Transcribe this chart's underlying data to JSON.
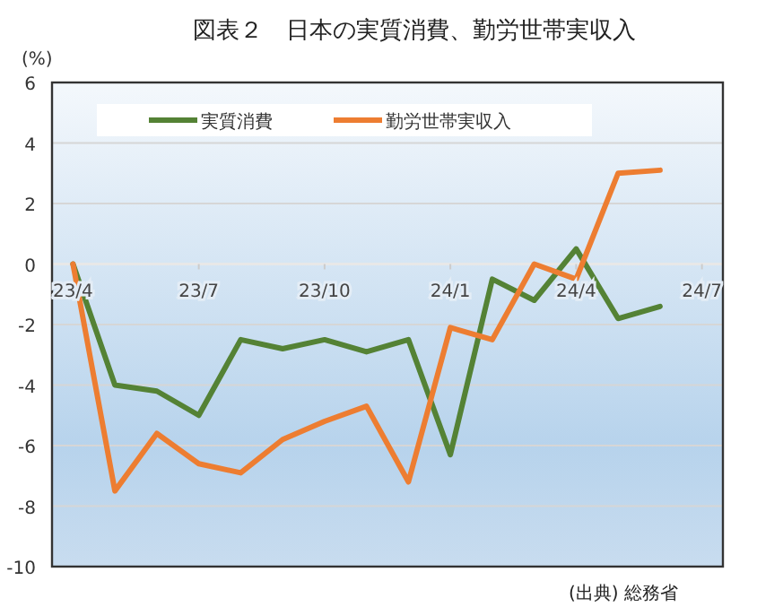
{
  "chart_data": {
    "type": "line",
    "title": "図表２　日本の実質消費、勤労世帯実収入",
    "ylabel": "(%)",
    "categories": [
      "23/4",
      null,
      null,
      "23/7",
      null,
      null,
      "23/10",
      null,
      null,
      "24/1",
      null,
      null,
      "24/4",
      null,
      null,
      "24/7"
    ],
    "series": [
      {
        "name": "実質消費",
        "color": "#548235",
        "values": [
          0,
          -4.0,
          -4.2,
          -5.0,
          -2.5,
          -2.8,
          -2.5,
          -2.9,
          -2.5,
          -6.3,
          -0.5,
          -1.2,
          0.5,
          -1.8,
          -1.4,
          null
        ]
      },
      {
        "name": "勤労世帯実収入",
        "color": "#ed7d31",
        "values": [
          0,
          -7.5,
          -5.6,
          -6.6,
          -6.9,
          -5.8,
          -5.2,
          -4.7,
          -7.2,
          -2.1,
          -2.5,
          0,
          -0.5,
          3.0,
          3.1,
          null
        ]
      }
    ],
    "ylim": [
      -10,
      6
    ],
    "yticks": [
      -10,
      -8,
      -6,
      -4,
      -2,
      0,
      2,
      4,
      6
    ],
    "grid": "y",
    "legend": "top",
    "line_style": "solid",
    "marker": "none",
    "annotations": [
      "(出典) 総務省"
    ]
  }
}
